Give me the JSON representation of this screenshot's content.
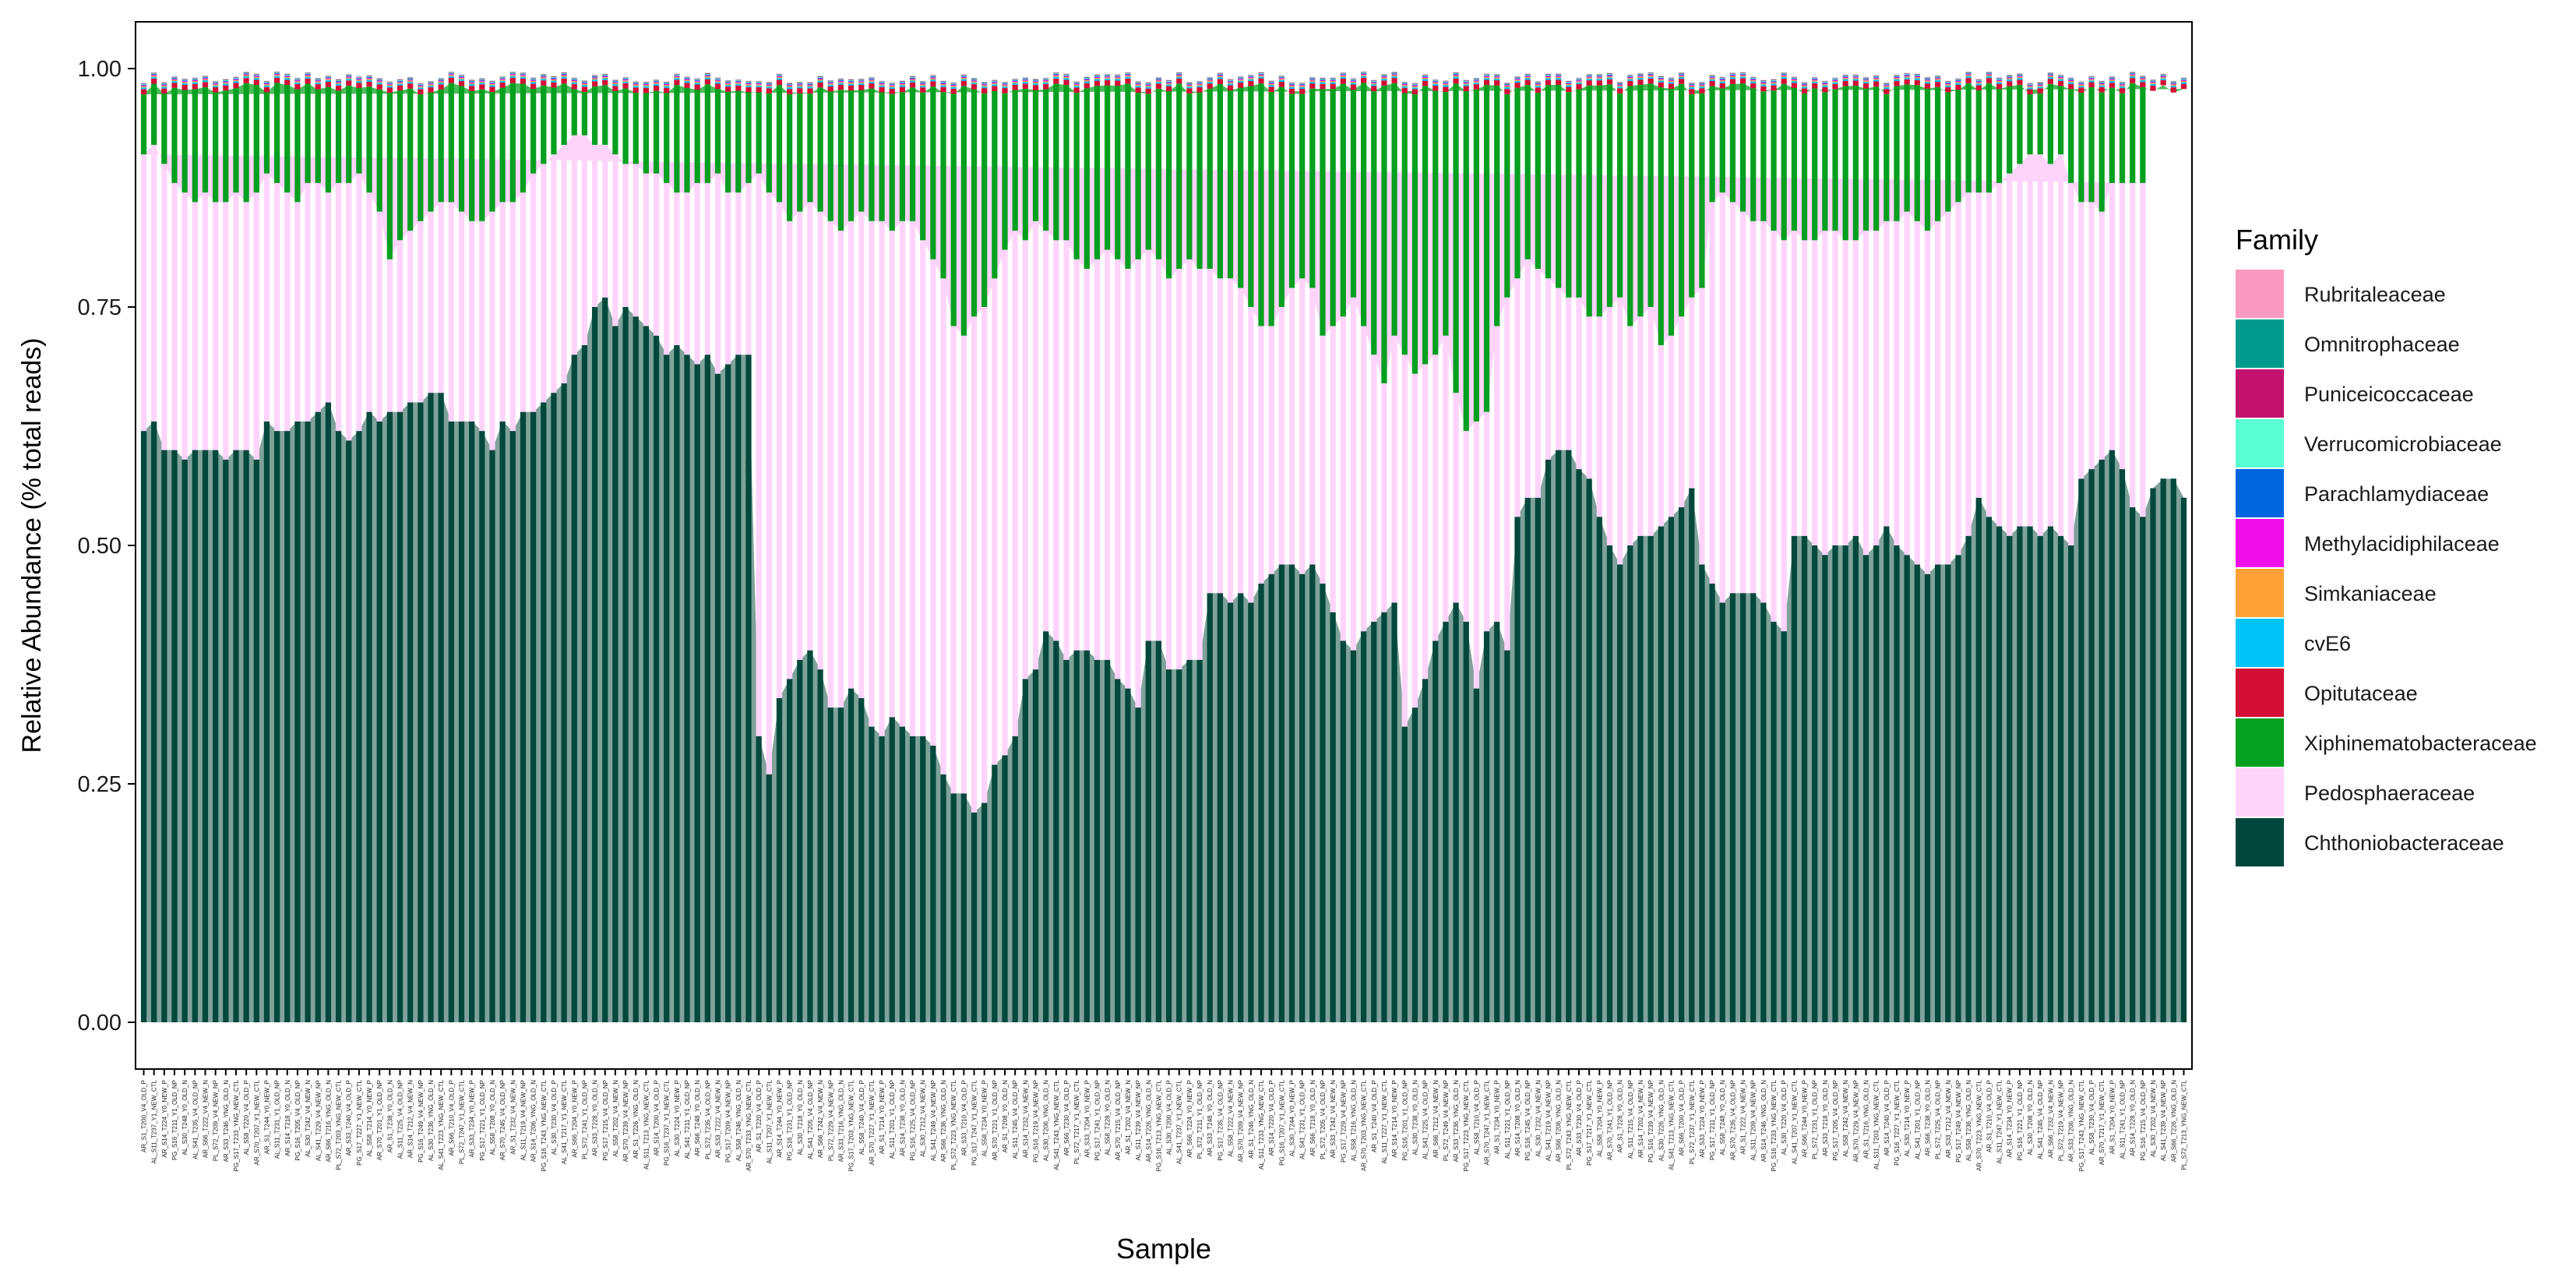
{
  "chart_data": {
    "type": "bar",
    "stacked": true,
    "xlabel": "Sample",
    "ylabel": "Relative Abundance (% total reads)",
    "ylim": [
      0,
      1.0
    ],
    "yticks": [
      "0.00",
      "0.25",
      "0.50",
      "0.75",
      "1.00"
    ],
    "legend": {
      "title": "Family",
      "position": "right"
    },
    "series": [
      {
        "name": "Rubritaleaceae",
        "color": "#fb9ac0"
      },
      {
        "name": "Omnitrophaceae",
        "color": "#009b8d"
      },
      {
        "name": "Puniceicoccaceae",
        "color": "#c2126d"
      },
      {
        "name": "Verrucomicrobiaceae",
        "color": "#5bffd4"
      },
      {
        "name": "Parachlamydiaceae",
        "color": "#0066e0"
      },
      {
        "name": "Methylacidiphilaceae",
        "color": "#f00de9"
      },
      {
        "name": "Simkaniaceae",
        "color": "#ffa136"
      },
      {
        "name": "cvE6",
        "color": "#00c3f7"
      },
      {
        "name": "Opitutaceae",
        "color": "#d30f35"
      },
      {
        "name": "Xiphinematobacteraceae",
        "color": "#06a020"
      },
      {
        "name": "Pedosphaeraceae",
        "color": "#ffd4fb"
      },
      {
        "name": "Chthoniobacteraceae",
        "color": "#02483c"
      }
    ],
    "category_prefixes": [
      "AR_S1",
      "AL_S11",
      "AR_S14",
      "PG_S16",
      "AL_S30",
      "AL_S41",
      "AR_S66",
      "PL_S72",
      "AR_S33",
      "PG_S17",
      "AL_S58",
      "AR_S70"
    ],
    "category_tails": [
      "V4_OLD_P",
      "V4_NEW_NP",
      "Y0_OLD_N",
      "Y1_NEW_CTL",
      "YNG_OLD_N",
      "V4_OLD_NP",
      "Y0_NEW_P",
      "YNG_NEW_CTL",
      "V4_NEW_N",
      "Y1_OLD_NP"
    ],
    "chthonio_series": [
      0.62,
      0.63,
      0.6,
      0.6,
      0.59,
      0.6,
      0.6,
      0.6,
      0.59,
      0.6,
      0.6,
      0.59,
      0.63,
      0.62,
      0.62,
      0.63,
      0.63,
      0.64,
      0.65,
      0.62,
      0.61,
      0.62,
      0.64,
      0.63,
      0.64,
      0.64,
      0.65,
      0.65,
      0.66,
      0.66,
      0.63,
      0.63,
      0.63,
      0.62,
      0.6,
      0.63,
      0.62,
      0.64,
      0.64,
      0.65,
      0.66,
      0.67,
      0.7,
      0.71,
      0.75,
      0.76,
      0.73,
      0.75,
      0.74,
      0.73,
      0.72,
      0.7,
      0.71,
      0.7,
      0.69,
      0.7,
      0.68,
      0.69,
      0.7,
      0.7,
      0.3,
      0.26,
      0.34,
      0.36,
      0.38,
      0.39,
      0.37,
      0.33,
      0.33,
      0.35,
      0.34,
      0.31,
      0.3,
      0.32,
      0.31,
      0.3,
      0.3,
      0.29,
      0.26,
      0.24,
      0.24,
      0.22,
      0.23,
      0.27,
      0.28,
      0.3,
      0.36,
      0.37,
      0.41,
      0.4,
      0.38,
      0.39,
      0.39,
      0.38,
      0.38,
      0.36,
      0.35,
      0.33,
      0.4,
      0.4,
      0.37,
      0.37,
      0.38,
      0.38,
      0.45,
      0.45,
      0.44,
      0.45,
      0.44,
      0.46,
      0.47,
      0.48,
      0.48,
      0.47,
      0.48,
      0.46,
      0.43,
      0.4,
      0.39,
      0.41,
      0.42,
      0.43,
      0.44,
      0.31,
      0.33,
      0.36,
      0.4,
      0.42,
      0.44,
      0.42,
      0.35,
      0.41,
      0.42,
      0.39,
      0.53,
      0.55,
      0.55,
      0.59,
      0.6,
      0.6,
      0.58,
      0.57,
      0.53,
      0.5,
      0.48,
      0.5,
      0.51,
      0.51,
      0.52,
      0.53,
      0.54,
      0.56,
      0.48,
      0.46,
      0.44,
      0.45,
      0.45,
      0.45,
      0.44,
      0.42,
      0.41,
      0.51,
      0.51,
      0.5,
      0.49,
      0.5,
      0.5,
      0.51,
      0.49,
      0.5,
      0.52,
      0.5,
      0.49,
      0.48,
      0.47,
      0.48,
      0.48,
      0.49,
      0.51,
      0.55,
      0.53,
      0.52,
      0.51,
      0.52,
      0.52,
      0.51,
      0.52,
      0.51,
      0.5,
      0.57,
      0.58,
      0.59,
      0.6,
      0.58,
      0.54,
      0.53,
      0.56,
      0.57,
      0.57,
      0.55
    ],
    "xiphinem_top_series": [
      0.91,
      0.92,
      0.9,
      0.88,
      0.87,
      0.86,
      0.87,
      0.86,
      0.86,
      0.87,
      0.86,
      0.87,
      0.89,
      0.88,
      0.87,
      0.86,
      0.88,
      0.88,
      0.87,
      0.88,
      0.88,
      0.89,
      0.87,
      0.85,
      0.8,
      0.82,
      0.83,
      0.84,
      0.85,
      0.86,
      0.86,
      0.85,
      0.84,
      0.84,
      0.85,
      0.86,
      0.86,
      0.87,
      0.89,
      0.9,
      0.91,
      0.92,
      0.93,
      0.93,
      0.92,
      0.92,
      0.91,
      0.9,
      0.9,
      0.89,
      0.89,
      0.88,
      0.87,
      0.87,
      0.88,
      0.88,
      0.89,
      0.87,
      0.87,
      0.88,
      0.89,
      0.87,
      0.86,
      0.84,
      0.85,
      0.86,
      0.85,
      0.84,
      0.83,
      0.84,
      0.85,
      0.84,
      0.84,
      0.83,
      0.84,
      0.84,
      0.82,
      0.8,
      0.78,
      0.73,
      0.72,
      0.74,
      0.75,
      0.78,
      0.81,
      0.83,
      0.82,
      0.84,
      0.83,
      0.82,
      0.82,
      0.8,
      0.79,
      0.8,
      0.81,
      0.8,
      0.79,
      0.8,
      0.81,
      0.8,
      0.78,
      0.79,
      0.8,
      0.79,
      0.79,
      0.78,
      0.78,
      0.77,
      0.75,
      0.73,
      0.73,
      0.75,
      0.77,
      0.78,
      0.77,
      0.72,
      0.73,
      0.74,
      0.76,
      0.73,
      0.7,
      0.67,
      0.72,
      0.7,
      0.68,
      0.69,
      0.7,
      0.72,
      0.66,
      0.62,
      0.63,
      0.64,
      0.73,
      0.76,
      0.78,
      0.8,
      0.79,
      0.78,
      0.77,
      0.76,
      0.76,
      0.74,
      0.74,
      0.75,
      0.76,
      0.73,
      0.74,
      0.75,
      0.71,
      0.72,
      0.74,
      0.76,
      0.77,
      0.86,
      0.87,
      0.86,
      0.85,
      0.84,
      0.84,
      0.83,
      0.82,
      0.83,
      0.82,
      0.82,
      0.83,
      0.83,
      0.82,
      0.82,
      0.83,
      0.83,
      0.84,
      0.84,
      0.85,
      0.84,
      0.83,
      0.84,
      0.85,
      0.86,
      0.87,
      0.87,
      0.87,
      0.88,
      0.89,
      0.9,
      0.91,
      0.91,
      0.9,
      0.91,
      0.88,
      0.86,
      0.86,
      0.85,
      0.88,
      0.88,
      0.88,
      0.88
    ]
  },
  "axis": {
    "y_title": "Relative Abundance (% total reads)",
    "x_title": "Sample"
  },
  "legend": {
    "title": "Family",
    "items": [
      {
        "label": "Rubritaleaceae",
        "color": "#fb9ac0"
      },
      {
        "label": "Omnitrophaceae",
        "color": "#009b8d"
      },
      {
        "label": "Puniceicoccaceae",
        "color": "#c2126d"
      },
      {
        "label": "Verrucomicrobiaceae",
        "color": "#5bffd4"
      },
      {
        "label": "Parachlamydiaceae",
        "color": "#0066e0"
      },
      {
        "label": "Methylacidiphilaceae",
        "color": "#f00de9"
      },
      {
        "label": "Simkaniaceae",
        "color": "#ffa136"
      },
      {
        "label": "cvE6",
        "color": "#00c3f7"
      },
      {
        "label": "Opitutaceae",
        "color": "#d30f35"
      },
      {
        "label": "Xiphinematobacteraceae",
        "color": "#06a020"
      },
      {
        "label": "Pedosphaeraceae",
        "color": "#ffd4fb"
      },
      {
        "label": "Chthoniobacteraceae",
        "color": "#02483c"
      }
    ]
  }
}
